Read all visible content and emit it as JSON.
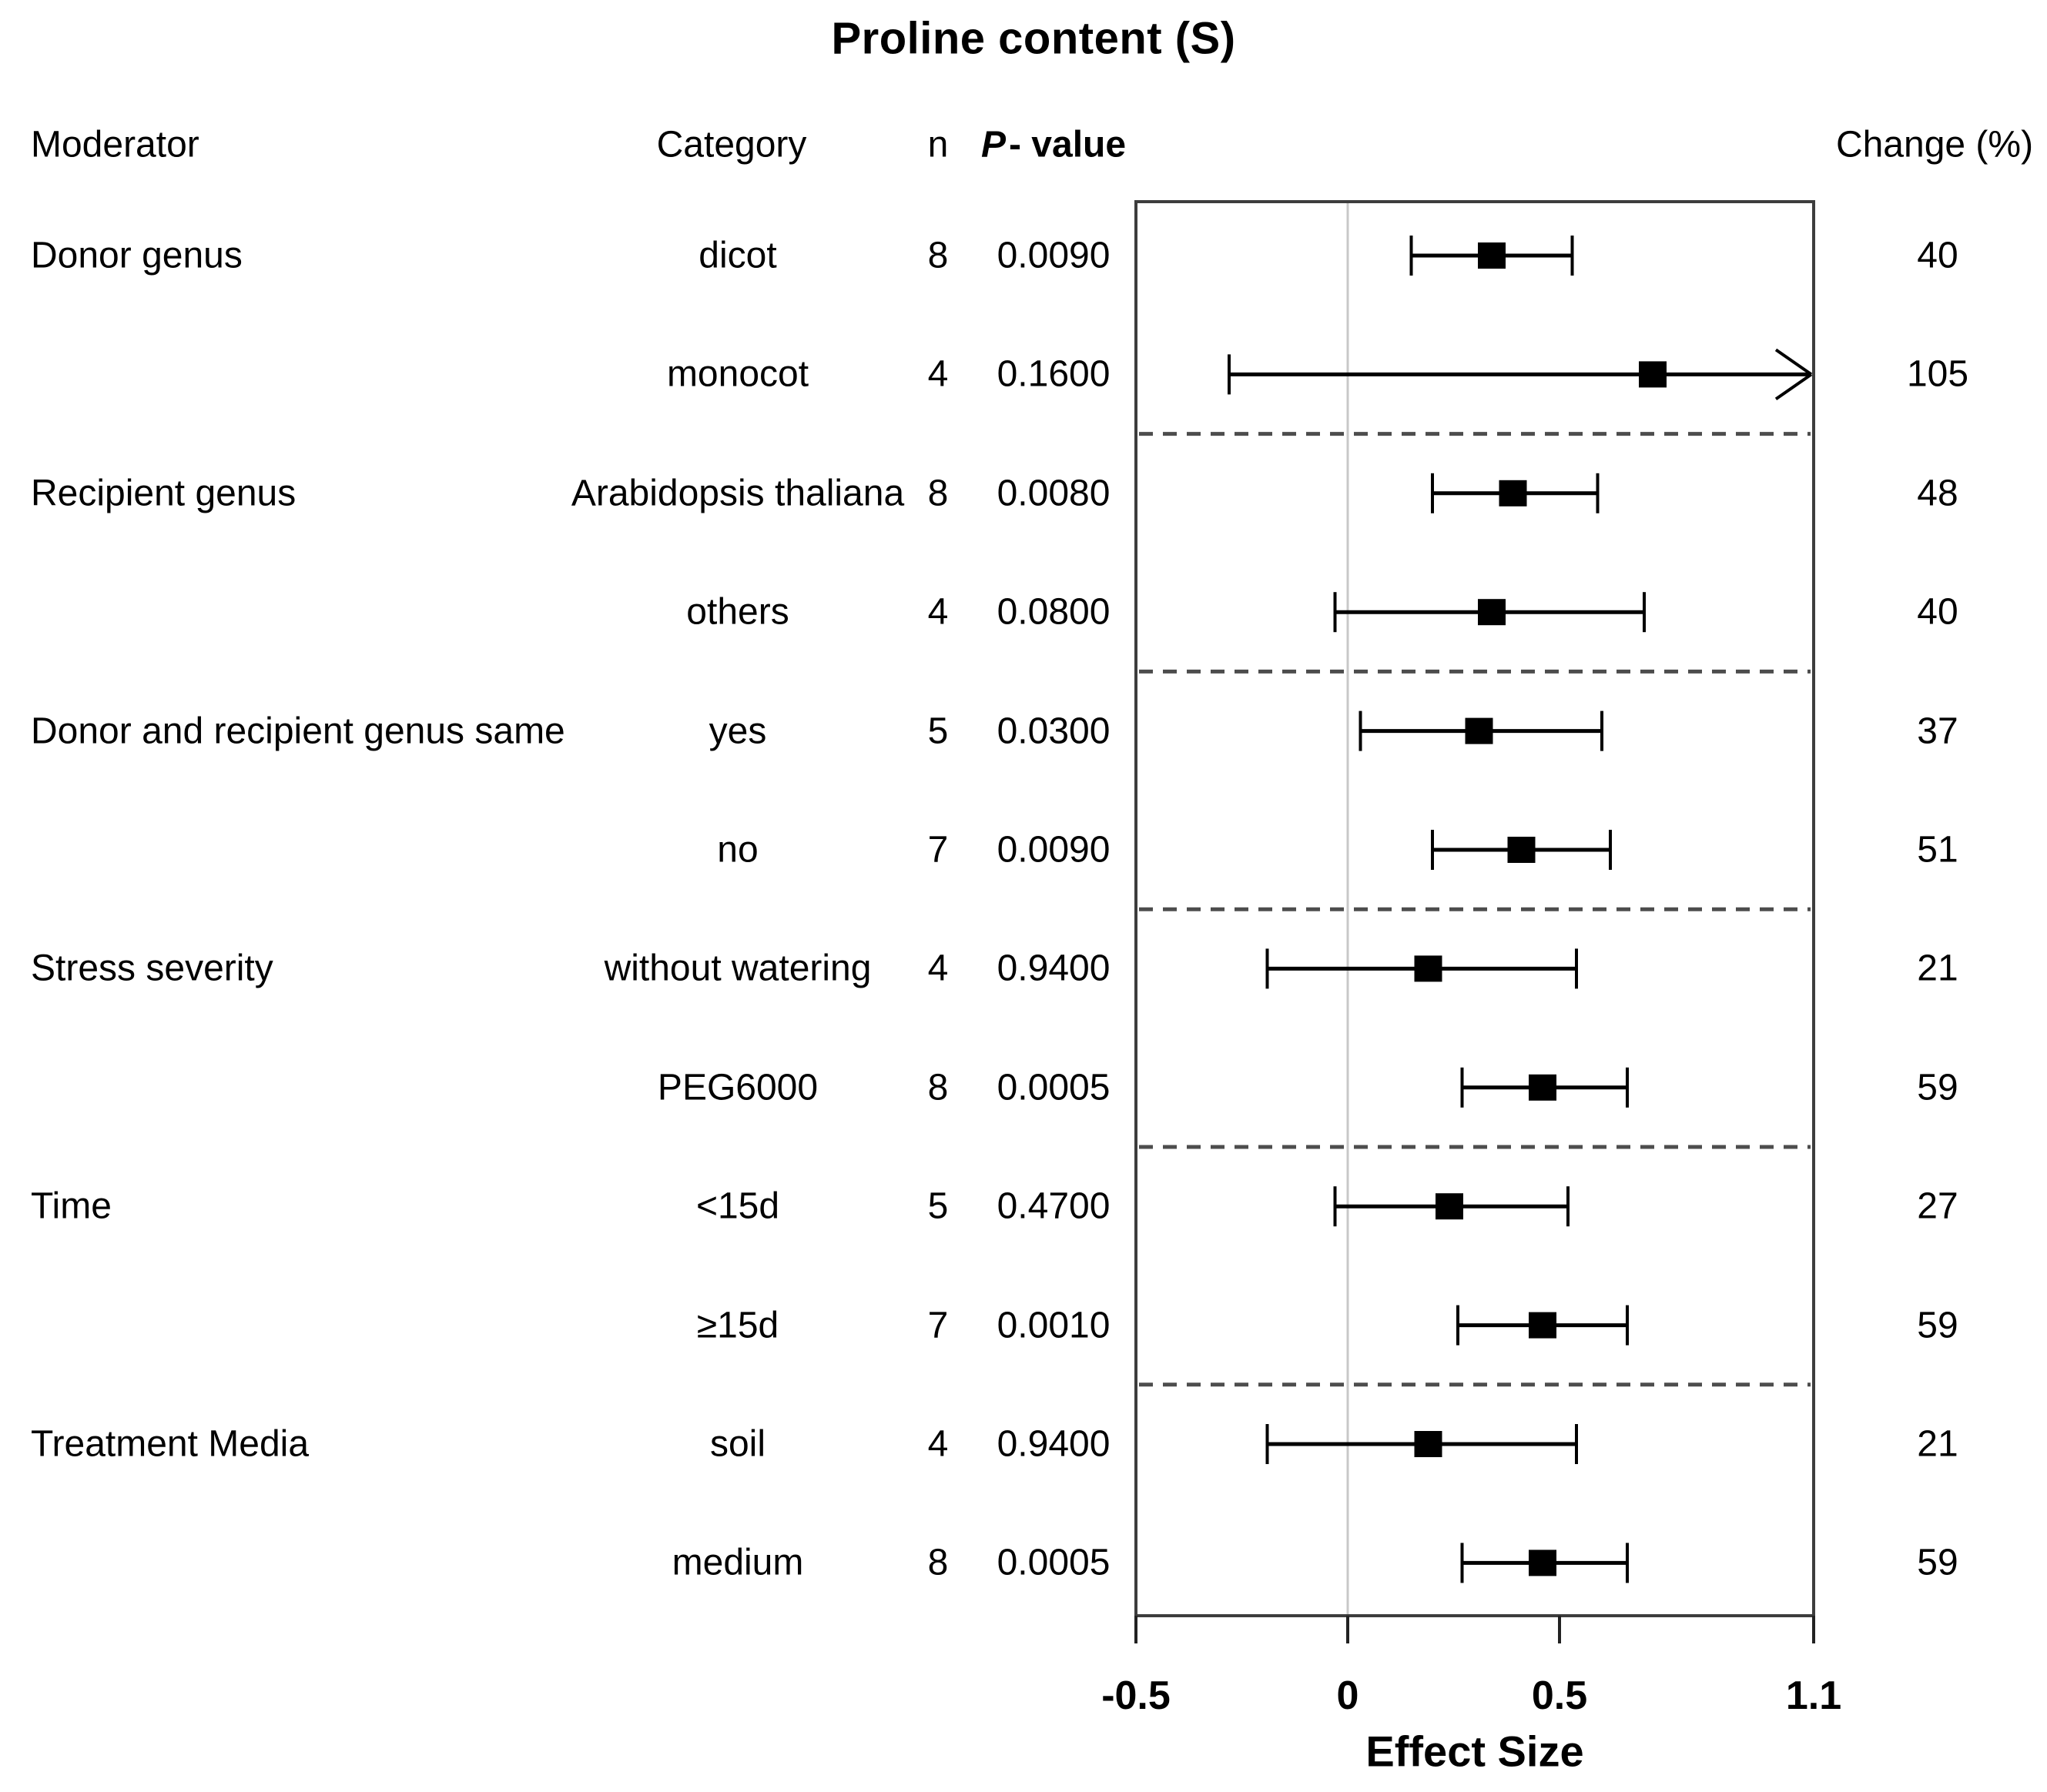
{
  "title": "Proline content (S)",
  "columns": {
    "moderator": "Moderator",
    "category": "Category",
    "n": "n",
    "p_italic": "P",
    "p_rest": "- value",
    "change": "Change (%)"
  },
  "axis": {
    "label": "Effect Size",
    "ticks": [
      -0.5,
      0,
      0.5,
      1.1
    ],
    "tick_labels": [
      "-0.5",
      "0",
      "0.5",
      "1.1"
    ],
    "xlim": [
      -0.5,
      1.1
    ],
    "reference_line": 0
  },
  "chart_data": {
    "type": "forest",
    "title": "Proline content (S)",
    "xlabel": "Effect Size",
    "xlim": [
      -0.5,
      1.1
    ],
    "x_ticks": [
      -0.5,
      0,
      0.5,
      1.1
    ],
    "reference_line": 0,
    "grid": false,
    "separators_after_rows": [
      1,
      3,
      5,
      7,
      9
    ],
    "rows": [
      {
        "moderator": "Donor genus",
        "category": "dicot",
        "n": 8,
        "p": "0.0090",
        "effect": 0.34,
        "ci_low": 0.15,
        "ci_high": 0.53,
        "change": 40,
        "arrow_right": false
      },
      {
        "moderator": "",
        "category": "monocot",
        "n": 4,
        "p": "0.1600",
        "effect": 0.72,
        "ci_low": -0.28,
        "ci_high": 1.1,
        "change": 105,
        "arrow_right": true
      },
      {
        "moderator": "Recipient genus",
        "category": "Arabidopsis thaliana",
        "n": 8,
        "p": "0.0080",
        "effect": 0.39,
        "ci_low": 0.2,
        "ci_high": 0.59,
        "change": 48,
        "arrow_right": false
      },
      {
        "moderator": "",
        "category": "others",
        "n": 4,
        "p": "0.0800",
        "effect": 0.34,
        "ci_low": -0.03,
        "ci_high": 0.7,
        "change": 40,
        "arrow_right": false
      },
      {
        "moderator": "Donor and recipient genus same",
        "category": "yes",
        "n": 5,
        "p": "0.0300",
        "effect": 0.31,
        "ci_low": 0.03,
        "ci_high": 0.6,
        "change": 37,
        "arrow_right": false
      },
      {
        "moderator": "",
        "category": "no",
        "n": 7,
        "p": "0.0090",
        "effect": 0.41,
        "ci_low": 0.2,
        "ci_high": 0.62,
        "change": 51,
        "arrow_right": false
      },
      {
        "moderator": "Stress severity",
        "category": "without watering",
        "n": 4,
        "p": "0.9400",
        "effect": 0.19,
        "ci_low": -0.19,
        "ci_high": 0.54,
        "change": 21,
        "arrow_right": false
      },
      {
        "moderator": "",
        "category": "PEG6000",
        "n": 8,
        "p": "0.0005",
        "effect": 0.46,
        "ci_low": 0.27,
        "ci_high": 0.66,
        "change": 59,
        "arrow_right": false
      },
      {
        "moderator": "Time",
        "category": "<15d",
        "n": 5,
        "p": "0.4700",
        "effect": 0.24,
        "ci_low": -0.03,
        "ci_high": 0.52,
        "change": 27,
        "arrow_right": false
      },
      {
        "moderator": "",
        "category": "≥15d",
        "n": 7,
        "p": "0.0010",
        "effect": 0.46,
        "ci_low": 0.26,
        "ci_high": 0.66,
        "change": 59,
        "arrow_right": false
      },
      {
        "moderator": "Treatment Media",
        "category": "soil",
        "n": 4,
        "p": "0.9400",
        "effect": 0.19,
        "ci_low": -0.19,
        "ci_high": 0.54,
        "change": 21,
        "arrow_right": false
      },
      {
        "moderator": "",
        "category": "medium",
        "n": 8,
        "p": "0.0005",
        "effect": 0.46,
        "ci_low": 0.27,
        "ci_high": 0.66,
        "change": 59,
        "arrow_right": false
      }
    ],
    "colors": {
      "marker": "#000000",
      "ci_line": "#000000",
      "reference_line": "#c8c8c8",
      "separator": "#4d4d4d",
      "box_border": "#3d3d3d"
    }
  }
}
